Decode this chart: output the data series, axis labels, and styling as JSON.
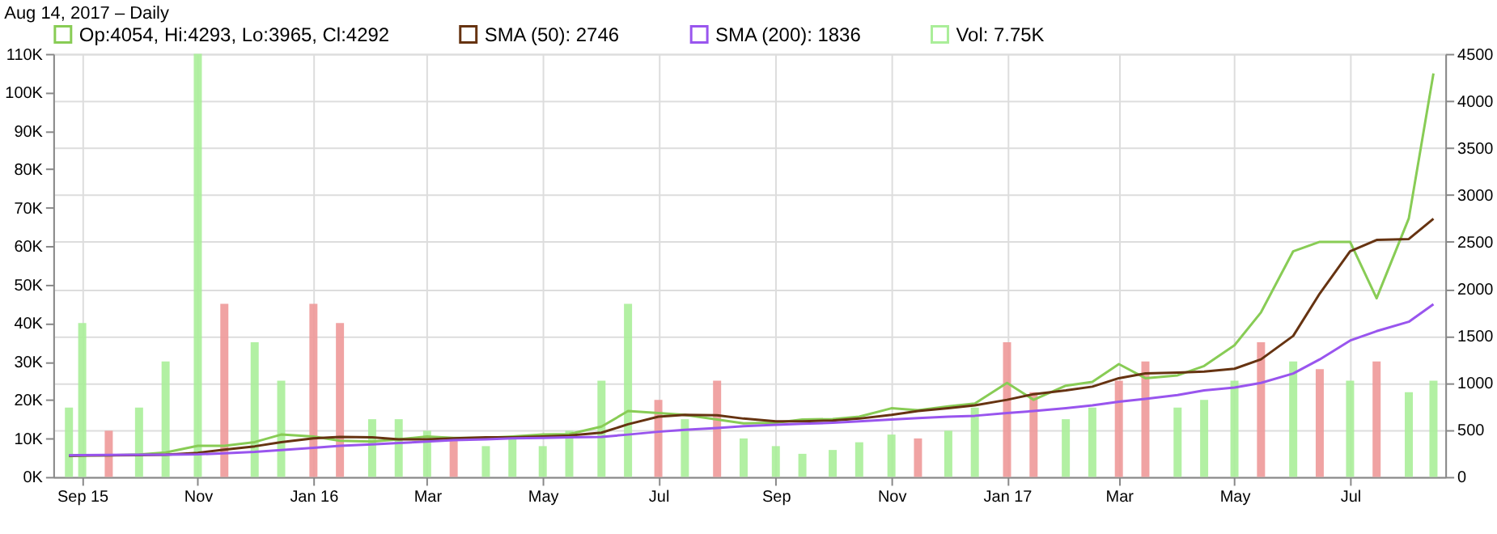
{
  "chart_data": {
    "type": "bar",
    "title": "Aug 14, 2017 – Daily",
    "x": [
      "2015-08-25",
      "2015-09-01",
      "2015-09-15",
      "2015-10-01",
      "2015-10-15",
      "2015-11-01",
      "2015-11-15",
      "2015-12-01",
      "2015-12-15",
      "2016-01-01",
      "2016-01-15",
      "2016-02-01",
      "2016-02-15",
      "2016-03-01",
      "2016-03-15",
      "2016-04-01",
      "2016-04-15",
      "2016-05-01",
      "2016-05-15",
      "2016-06-01",
      "2016-06-15",
      "2016-07-01",
      "2016-07-15",
      "2016-08-01",
      "2016-08-15",
      "2016-09-01",
      "2016-09-15",
      "2016-10-01",
      "2016-10-15",
      "2016-11-01",
      "2016-11-15",
      "2016-12-01",
      "2016-12-15",
      "2017-01-01",
      "2017-01-15",
      "2017-02-01",
      "2017-02-15",
      "2017-03-01",
      "2017-03-15",
      "2017-04-01",
      "2017-04-15",
      "2017-05-01",
      "2017-05-15",
      "2017-06-01",
      "2017-06-15",
      "2017-07-01",
      "2017-07-15",
      "2017-08-01",
      "2017-08-14"
    ],
    "series": [
      {
        "name": "Op:4054, Hi:4293, Lo:3965, Cl:4292",
        "type": "line",
        "axis": "y2",
        "color": "#88cc55",
        "values": [
          220,
          230,
          230,
          237,
          260,
          330,
          330,
          370,
          450,
          430,
          385,
          375,
          400,
          430,
          415,
          415,
          430,
          450,
          455,
          535,
          700,
          680,
          660,
          610,
          570,
          575,
          610,
          615,
          640,
          730,
          710,
          750,
          780,
          1000,
          820,
          970,
          1010,
          1200,
          1050,
          1080,
          1180,
          1400,
          1750,
          2400,
          2500,
          2500,
          1900,
          2750,
          4292
        ]
      },
      {
        "name": "SMA (50): 2746",
        "type": "line",
        "axis": "y2",
        "color": "#663311",
        "values": [
          225,
          228,
          230,
          232,
          235,
          255,
          290,
          325,
          370,
          410,
          425,
          420,
          400,
          400,
          410,
          420,
          420,
          430,
          440,
          470,
          560,
          640,
          660,
          655,
          620,
          590,
          590,
          600,
          620,
          660,
          700,
          730,
          760,
          820,
          880,
          920,
          960,
          1050,
          1100,
          1110,
          1120,
          1150,
          1250,
          1500,
          1950,
          2400,
          2520,
          2530,
          2746
        ]
      },
      {
        "name": "SMA (200): 1836",
        "type": "line",
        "axis": "y2",
        "color": "#9955ee",
        "values": [
          230,
          232,
          233,
          235,
          236,
          240,
          250,
          265,
          285,
          310,
          330,
          345,
          360,
          375,
          390,
          400,
          410,
          415,
          420,
          425,
          450,
          480,
          500,
          520,
          540,
          555,
          565,
          575,
          590,
          610,
          625,
          640,
          650,
          680,
          700,
          730,
          760,
          800,
          830,
          870,
          920,
          950,
          1000,
          1100,
          1250,
          1450,
          1550,
          1650,
          1836
        ]
      },
      {
        "name": "Vol: 7.75K",
        "axis": "y",
        "color": "#aaee99",
        "values": [
          18000,
          40000,
          12000,
          18000,
          30000,
          110000,
          45000,
          35000,
          25000,
          45000,
          40000,
          15000,
          15000,
          12000,
          10000,
          8000,
          10000,
          8000,
          12000,
          25000,
          45000,
          20000,
          15000,
          25000,
          10000,
          8000,
          6000,
          7000,
          9000,
          11000,
          10000,
          12000,
          18000,
          35000,
          22000,
          15000,
          18000,
          25000,
          30000,
          18000,
          20000,
          25000,
          35000,
          30000,
          28000,
          25000,
          30000,
          22000,
          25000
        ],
        "colors": [
          "#aaee99",
          "#aaee99",
          "#ee9999",
          "#aaee99",
          "#aaee99",
          "#aaee99",
          "#ee9999",
          "#aaee99",
          "#aaee99",
          "#ee9999",
          "#ee9999",
          "#aaee99",
          "#aaee99",
          "#aaee99",
          "#ee9999",
          "#aaee99",
          "#aaee99",
          "#aaee99",
          "#aaee99",
          "#aaee99",
          "#aaee99",
          "#ee9999",
          "#aaee99",
          "#ee9999",
          "#aaee99",
          "#aaee99",
          "#aaee99",
          "#aaee99",
          "#aaee99",
          "#aaee99",
          "#ee9999",
          "#aaee99",
          "#aaee99",
          "#ee9999",
          "#ee9999",
          "#aaee99",
          "#aaee99",
          "#ee9999",
          "#ee9999",
          "#aaee99",
          "#aaee99",
          "#aaee99",
          "#ee9999",
          "#aaee99",
          "#ee9999",
          "#aaee99",
          "#ee9999",
          "#aaee99",
          "#aaee99"
        ]
      }
    ],
    "xlim": [
      "2015-08-21",
      "2017-08-16"
    ],
    "xticks": [
      {
        "value": "2015-09-01",
        "label": "Sep 15"
      },
      {
        "value": "2015-11-01",
        "label": "Nov"
      },
      {
        "value": "2016-01-01",
        "label": "Jan 16"
      },
      {
        "value": "2016-03-01",
        "label": "Mar"
      },
      {
        "value": "2016-05-01",
        "label": "May"
      },
      {
        "value": "2016-07-01",
        "label": "Jul"
      },
      {
        "value": "2016-09-01",
        "label": "Sep"
      },
      {
        "value": "2016-11-01",
        "label": "Nov"
      },
      {
        "value": "2017-01-01",
        "label": "Jan 17"
      },
      {
        "value": "2017-03-01",
        "label": "Mar"
      },
      {
        "value": "2017-05-01",
        "label": "May"
      },
      {
        "value": "2017-07-01",
        "label": "Jul"
      }
    ],
    "ylim": [
      0,
      110000
    ],
    "yticks": [
      {
        "value": 0,
        "label": "0K"
      },
      {
        "value": 10000,
        "label": "10K"
      },
      {
        "value": 20000,
        "label": "20K"
      },
      {
        "value": 30000,
        "label": "30K"
      },
      {
        "value": 40000,
        "label": "40K"
      },
      {
        "value": 50000,
        "label": "50K"
      },
      {
        "value": 60000,
        "label": "60K"
      },
      {
        "value": 70000,
        "label": "70K"
      },
      {
        "value": 80000,
        "label": "80K"
      },
      {
        "value": 90000,
        "label": "90K"
      },
      {
        "value": 100000,
        "label": "100K"
      },
      {
        "value": 110000,
        "label": "110K"
      }
    ],
    "y2lim": [
      0,
      4500
    ],
    "y2ticks": [
      0,
      500,
      1000,
      1500,
      2000,
      2500,
      3000,
      3500,
      4000,
      4500
    ],
    "grid": true,
    "legend": "top left",
    "line_style": "solid",
    "marker": "none"
  }
}
